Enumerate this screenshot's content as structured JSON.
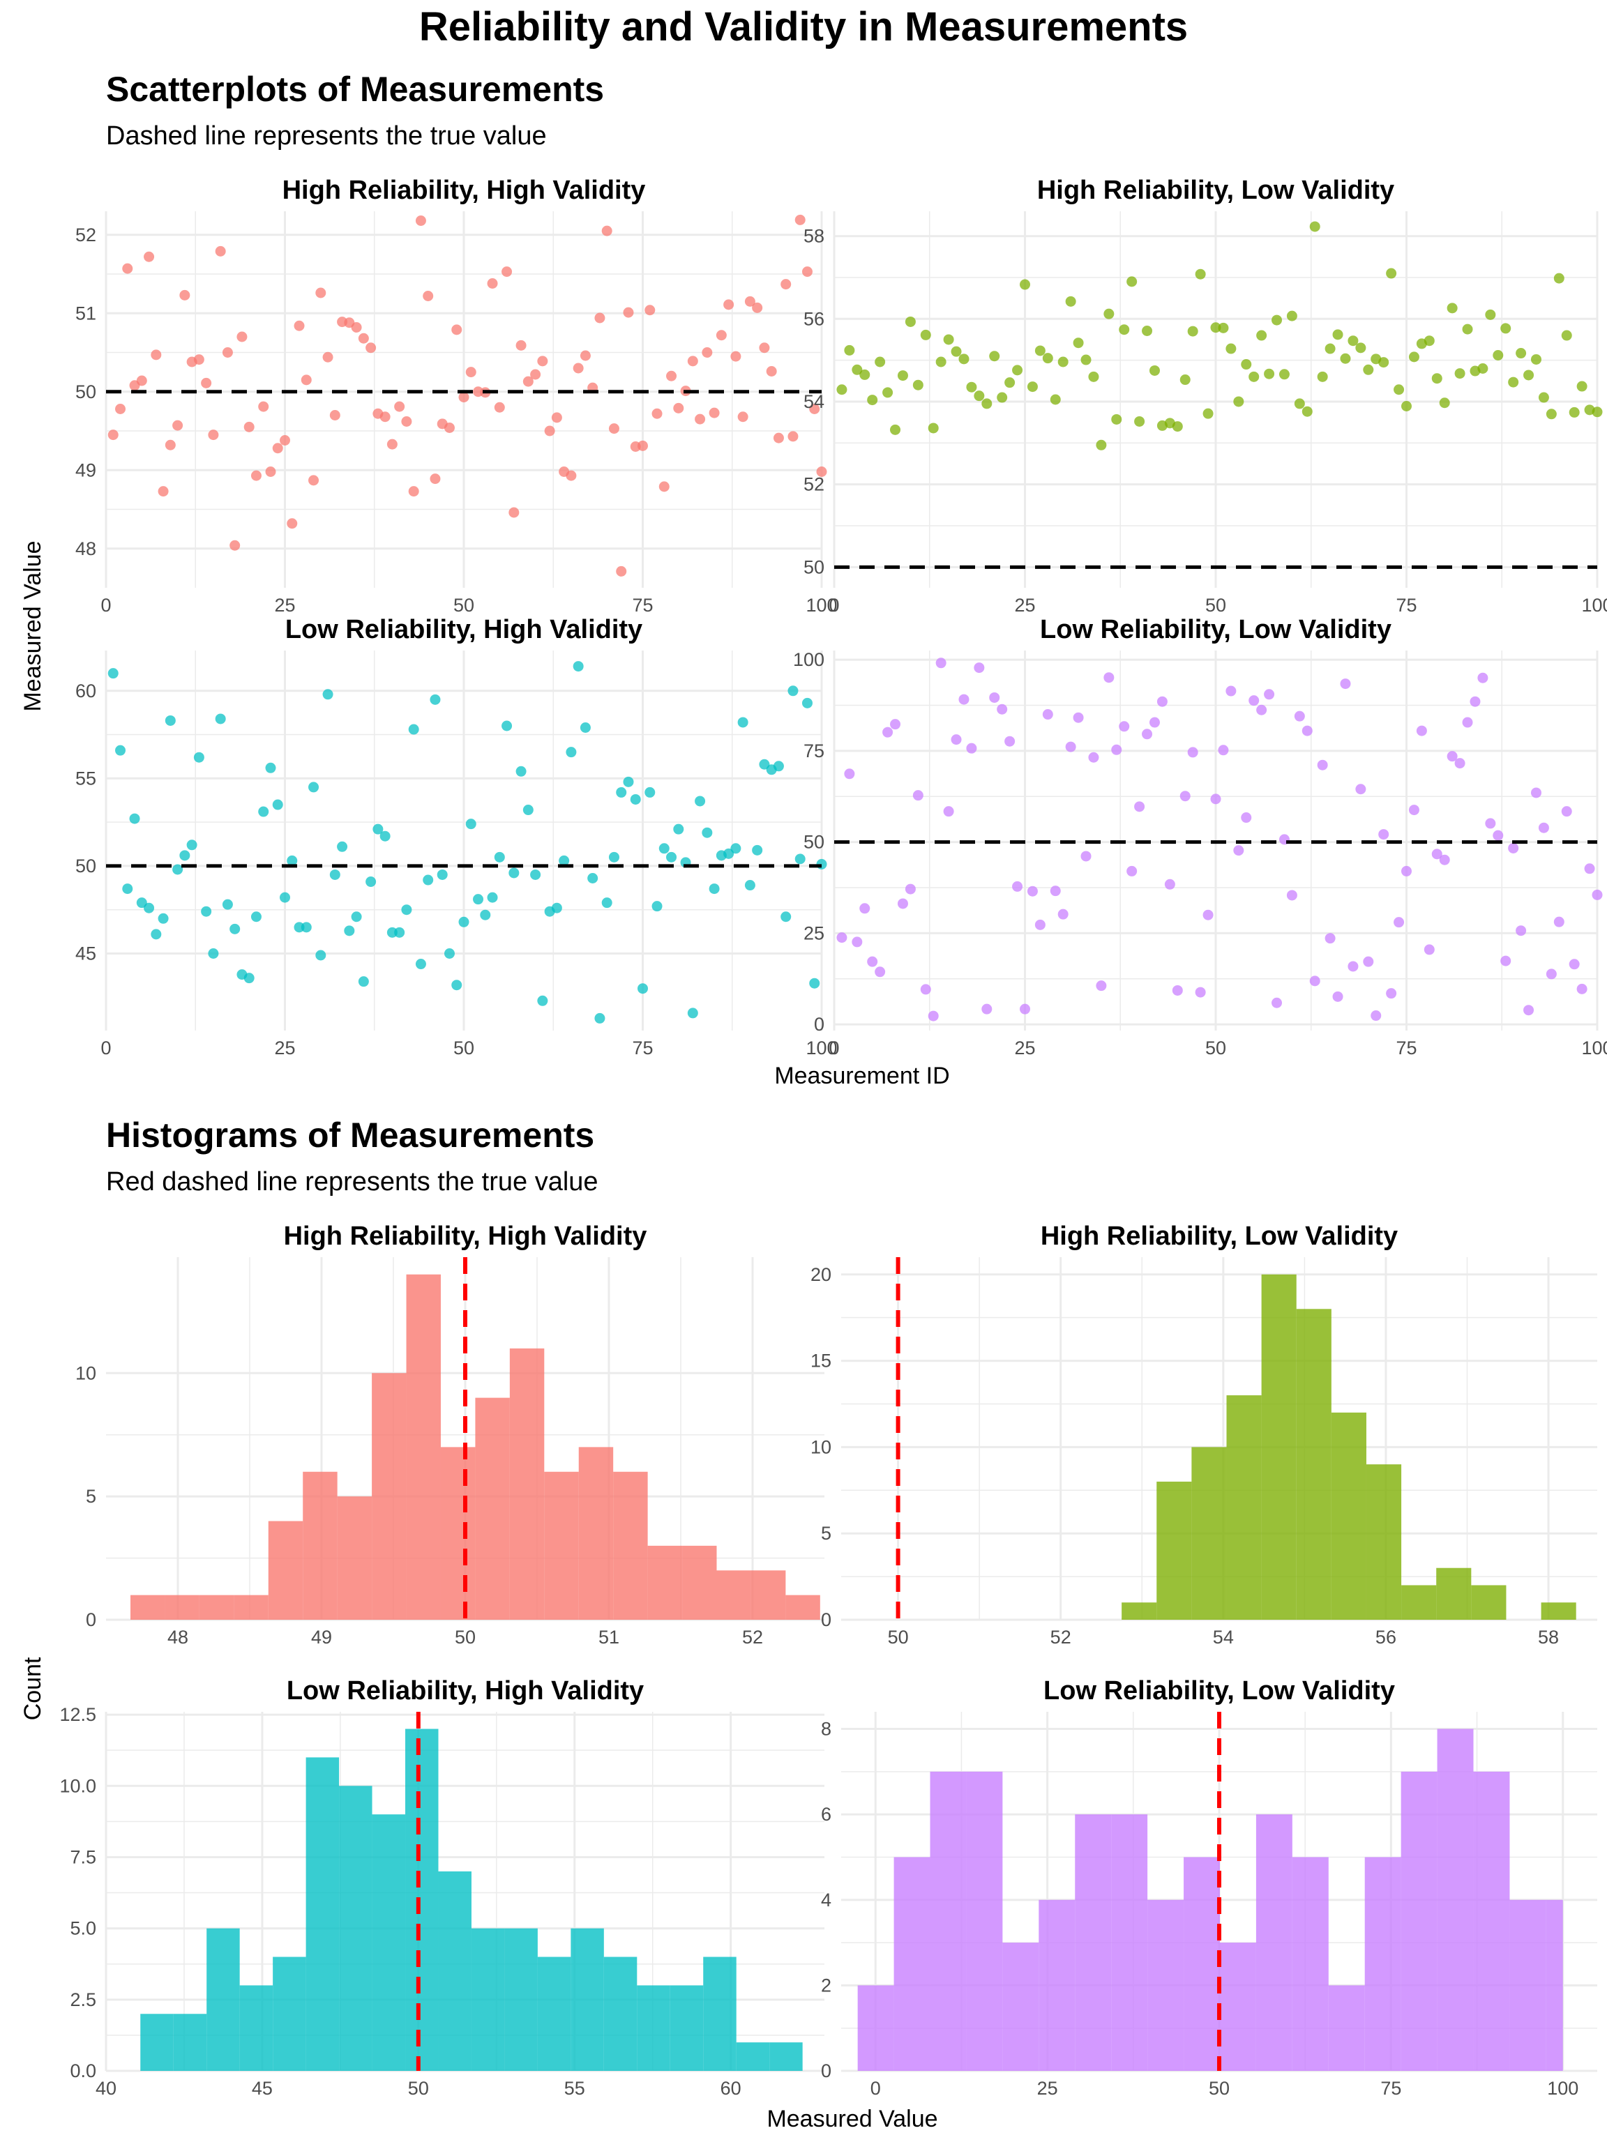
{
  "title": "Reliability and Validity in Measurements",
  "scatter_section": {
    "title": "Scatterplots of Measurements",
    "subtitle": "Dashed line represents the true value",
    "xlabel": "Measurement ID",
    "ylabel": "Measured Value"
  },
  "hist_section": {
    "title": "Histograms of Measurements",
    "subtitle": "Red dashed line represents the true value",
    "xlabel": "Measured Value",
    "ylabel": "Count"
  },
  "colors": {
    "hrhv": "#F8766D",
    "hrlv": "#7CAE00",
    "lrhv": "#00BFC4",
    "lrlv": "#C77CFF",
    "scatter_ref_line": "#000000",
    "hist_ref_line": "#FF0000",
    "grid": "#EBEBEB"
  },
  "chart_data": [
    {
      "type": "scatter",
      "title": "High Reliability, High Validity",
      "color_key": "hrhv",
      "true_value": 50,
      "xlim": [
        0,
        100
      ],
      "ylim": [
        47.5,
        52.3
      ],
      "xticks": [
        0,
        25,
        50,
        75,
        100
      ],
      "yticks": [
        48,
        49,
        50,
        51,
        52
      ],
      "x": [
        1,
        2,
        3,
        4,
        5,
        6,
        7,
        8,
        9,
        10,
        11,
        12,
        13,
        14,
        15,
        16,
        17,
        18,
        19,
        20,
        21,
        22,
        23,
        24,
        25,
        26,
        27,
        28,
        29,
        30,
        31,
        32,
        33,
        34,
        35,
        36,
        37,
        38,
        39,
        40,
        41,
        42,
        43,
        44,
        45,
        46,
        47,
        48,
        49,
        50,
        51,
        52,
        53,
        54,
        55,
        56,
        57,
        58,
        59,
        60,
        61,
        62,
        63,
        64,
        65,
        66,
        67,
        68,
        69,
        70,
        71,
        72,
        73,
        74,
        75,
        76,
        77,
        78,
        79,
        80,
        81,
        82,
        83,
        84,
        85,
        86,
        87,
        88,
        89,
        90,
        91,
        92,
        93,
        94,
        95,
        96,
        97,
        98,
        99,
        100
      ],
      "y": [
        49.45,
        49.78,
        51.57,
        50.08,
        50.14,
        51.72,
        50.47,
        48.73,
        49.32,
        49.57,
        51.23,
        50.38,
        50.41,
        50.11,
        49.45,
        51.79,
        50.5,
        48.04,
        50.7,
        49.55,
        48.93,
        49.81,
        48.98,
        49.28,
        49.38,
        48.32,
        50.84,
        50.15,
        48.87,
        51.26,
        50.44,
        49.7,
        50.89,
        50.88,
        50.82,
        50.68,
        50.56,
        49.72,
        49.68,
        49.33,
        49.81,
        49.62,
        48.73,
        52.18,
        51.22,
        48.89,
        49.59,
        49.54,
        50.79,
        49.93,
        50.25,
        50,
        49.99,
        51.38,
        49.8,
        51.53,
        48.46,
        50.59,
        50.13,
        50.22,
        50.39,
        49.5,
        49.67,
        48.98,
        48.93,
        50.3,
        50.46,
        50.05,
        50.94,
        52.05,
        49.53,
        47.71,
        51.01,
        49.3,
        49.31,
        51.04,
        49.72,
        48.79,
        50.2,
        49.79,
        50.01,
        50.39,
        49.65,
        50.5,
        49.73,
        50.72,
        51.11,
        50.45,
        49.68,
        51.15,
        51.07,
        50.56,
        50.26,
        49.41,
        51.37,
        49.43,
        52.19,
        51.53,
        49.78,
        48.98
      ]
    },
    {
      "type": "scatter",
      "title": "High Reliability, Low Validity",
      "color_key": "hrlv",
      "true_value": 50,
      "xlim": [
        0,
        100
      ],
      "ylim": [
        49.5,
        58.6
      ],
      "xticks": [
        0,
        25,
        50,
        75,
        100
      ],
      "yticks": [
        50,
        52,
        54,
        56,
        58
      ],
      "x": [
        1,
        2,
        3,
        4,
        5,
        6,
        7,
        8,
        9,
        10,
        11,
        12,
        13,
        14,
        15,
        16,
        17,
        18,
        19,
        20,
        21,
        22,
        23,
        24,
        25,
        26,
        27,
        28,
        29,
        30,
        31,
        32,
        33,
        34,
        35,
        36,
        37,
        38,
        39,
        40,
        41,
        42,
        43,
        44,
        45,
        46,
        47,
        48,
        49,
        50,
        51,
        52,
        53,
        54,
        55,
        56,
        57,
        58,
        59,
        60,
        61,
        62,
        63,
        64,
        65,
        66,
        67,
        68,
        69,
        70,
        71,
        72,
        73,
        74,
        75,
        76,
        77,
        78,
        79,
        80,
        81,
        82,
        83,
        84,
        85,
        86,
        87,
        88,
        89,
        90,
        91,
        92,
        93,
        94,
        95,
        96,
        97,
        98,
        99,
        100
      ],
      "y": [
        54.29,
        55.24,
        54.77,
        54.65,
        54.04,
        54.96,
        54.22,
        53.32,
        54.63,
        55.93,
        54.4,
        55.61,
        53.36,
        54.96,
        55.5,
        55.21,
        55.03,
        54.35,
        54.14,
        53.95,
        55.1,
        54.1,
        54.46,
        54.76,
        56.83,
        54.36,
        55.23,
        55.05,
        54.05,
        54.96,
        56.42,
        55.42,
        55.01,
        54.6,
        52.95,
        56.12,
        53.57,
        55.74,
        56.9,
        53.52,
        55.71,
        54.75,
        53.42,
        53.48,
        53.4,
        54.53,
        55.7,
        57.08,
        53.71,
        55.79,
        55.78,
        55.28,
        54.0,
        54.9,
        54.6,
        55.6,
        54.67,
        55.97,
        54.66,
        56.07,
        53.95,
        53.76,
        58.23,
        54.6,
        55.28,
        55.62,
        55.04,
        55.47,
        55.3,
        54.77,
        55.03,
        54.95,
        57.1,
        54.29,
        53.89,
        55.08,
        55.4,
        55.47,
        54.56,
        53.97,
        56.26,
        54.68,
        55.75,
        54.74,
        54.8,
        56.1,
        55.12,
        55.77,
        54.47,
        55.17,
        54.64,
        55.02,
        54.1,
        53.7,
        56.98,
        55.6,
        53.74,
        54.37,
        53.8,
        53.75
      ]
    },
    {
      "type": "scatter",
      "title": "Low Reliability, High Validity",
      "color_key": "lrhv",
      "true_value": 50,
      "xlim": [
        0,
        100
      ],
      "ylim": [
        40.6,
        62.3
      ],
      "xticks": [
        0,
        25,
        50,
        75,
        100
      ],
      "yticks": [
        45,
        50,
        55,
        60
      ],
      "x": [
        1,
        2,
        3,
        4,
        5,
        6,
        7,
        8,
        9,
        10,
        11,
        12,
        13,
        14,
        15,
        16,
        17,
        18,
        19,
        20,
        21,
        22,
        23,
        24,
        25,
        26,
        27,
        28,
        29,
        30,
        31,
        32,
        33,
        34,
        35,
        36,
        37,
        38,
        39,
        40,
        41,
        42,
        43,
        44,
        45,
        46,
        47,
        48,
        49,
        50,
        51,
        52,
        53,
        54,
        55,
        56,
        57,
        58,
        59,
        60,
        61,
        62,
        63,
        64,
        65,
        66,
        67,
        68,
        69,
        70,
        71,
        72,
        73,
        74,
        75,
        76,
        77,
        78,
        79,
        80,
        81,
        82,
        83,
        84,
        85,
        86,
        87,
        88,
        89,
        90,
        91,
        92,
        93,
        94,
        95,
        96,
        97,
        98,
        99,
        100
      ],
      "y": [
        61,
        56.6,
        48.7,
        52.7,
        47.9,
        47.6,
        46.1,
        47,
        58.3,
        49.8,
        50.6,
        51.2,
        56.2,
        47.4,
        45,
        58.4,
        47.8,
        46.4,
        43.8,
        43.6,
        47.1,
        53.1,
        55.6,
        53.5,
        48.2,
        50.3,
        46.5,
        46.5,
        54.5,
        44.9,
        59.8,
        49.5,
        51.1,
        46.3,
        47.1,
        43.4,
        49.1,
        52.1,
        51.7,
        46.2,
        46.2,
        47.5,
        57.8,
        44.4,
        49.2,
        59.5,
        49.5,
        45,
        43.2,
        46.8,
        52.4,
        48.1,
        47.2,
        48.2,
        50.5,
        58,
        49.6,
        55.4,
        53.2,
        49.5,
        42.3,
        47.4,
        47.6,
        50.3,
        56.5,
        61.4,
        57.9,
        49.3,
        41.3,
        47.9,
        50.5,
        54.2,
        54.8,
        53.8,
        43,
        54.2,
        47.7,
        51,
        50.5,
        52.1,
        50.2,
        41.6,
        53.7,
        51.9,
        48.7,
        50.6,
        50.7,
        51,
        58.2,
        48.9,
        50.9,
        55.8,
        55.5,
        55.7,
        47.1,
        60,
        50.4,
        59.3,
        43.3,
        50.1
      ]
    },
    {
      "type": "scatter",
      "title": "Low Reliability, Low Validity",
      "color_key": "lrlv",
      "true_value": 50,
      "xlim": [
        0,
        100
      ],
      "ylim": [
        -1.7,
        102.5
      ],
      "xticks": [
        0,
        25,
        50,
        75,
        100
      ],
      "yticks": [
        0,
        25,
        50,
        75,
        100
      ],
      "x": [
        1,
        2,
        3,
        4,
        5,
        6,
        7,
        8,
        9,
        10,
        11,
        12,
        13,
        14,
        15,
        16,
        17,
        18,
        19,
        20,
        21,
        22,
        23,
        24,
        25,
        26,
        27,
        28,
        29,
        30,
        31,
        32,
        33,
        34,
        35,
        36,
        37,
        38,
        39,
        40,
        41,
        42,
        43,
        44,
        45,
        46,
        47,
        48,
        49,
        50,
        51,
        52,
        53,
        54,
        55,
        56,
        57,
        58,
        59,
        60,
        61,
        62,
        63,
        64,
        65,
        66,
        67,
        68,
        69,
        70,
        71,
        72,
        73,
        74,
        75,
        76,
        77,
        78,
        79,
        80,
        81,
        82,
        83,
        84,
        85,
        86,
        87,
        88,
        89,
        90,
        91,
        92,
        93,
        94,
        95,
        96,
        97,
        98,
        99,
        100
      ],
      "y": [
        23.8,
        68.7,
        22.6,
        31.8,
        17.2,
        14.4,
        80.1,
        82.3,
        33.1,
        37.1,
        62.8,
        9.6,
        2.3,
        99.1,
        58.4,
        78.1,
        89.1,
        75.7,
        97.8,
        4.2,
        89.6,
        86.4,
        77.6,
        37.8,
        4.2,
        36.5,
        27.3,
        85,
        36.6,
        30.2,
        76.1,
        84.1,
        46.1,
        73.2,
        10.6,
        95.1,
        75.3,
        81.7,
        42,
        59.7,
        79.6,
        82.8,
        88.5,
        38.4,
        9.3,
        62.6,
        74.6,
        8.8,
        30,
        61.8,
        75.2,
        91.4,
        47.7,
        56.7,
        88.8,
        86.2,
        90.5,
        5.9,
        50.7,
        35.4,
        84.5,
        80.5,
        11.9,
        71.1,
        23.6,
        7.6,
        93.4,
        15.9,
        64.5,
        17.2,
        2.4,
        52.1,
        8.5,
        28,
        42,
        58.8,
        80.5,
        20.5,
        46.7,
        45.1,
        73.5,
        71.6,
        82.8,
        88.5,
        95,
        55.1,
        51.8,
        17.4,
        48.3,
        25.7,
        3.9,
        63.5,
        53.9,
        13.8,
        28.1,
        58.4,
        16.5,
        9.7,
        42.7,
        35.5
      ]
    },
    {
      "type": "histogram",
      "title": "High Reliability, High Validity",
      "color_key": "hrhv",
      "true_value": 50,
      "xlim": [
        47.5,
        52.5
      ],
      "ylim": [
        0,
        14.7
      ],
      "xticks": [
        48,
        49,
        50,
        51,
        52
      ],
      "yticks": [
        0,
        5,
        10
      ],
      "bin_edges": [
        47.67,
        47.91,
        48.15,
        48.39,
        48.63,
        48.87,
        49.11,
        49.35,
        49.59,
        49.83,
        50.07,
        50.31,
        50.55,
        50.79,
        51.03,
        51.27,
        51.51,
        51.75,
        51.99,
        52.23,
        52.47
      ],
      "counts": [
        1,
        1,
        1,
        1,
        4,
        6,
        5,
        10,
        14,
        7,
        9,
        11,
        6,
        7,
        6,
        3,
        3,
        2,
        2,
        1
      ]
    },
    {
      "type": "histogram",
      "title": "High Reliability, Low Validity",
      "color_key": "hrlv",
      "true_value": 50,
      "xlim": [
        49.3,
        58.6
      ],
      "ylim": [
        0,
        21
      ],
      "xticks": [
        50,
        52,
        54,
        56,
        58
      ],
      "yticks": [
        0,
        5,
        10,
        15,
        20
      ],
      "bin_edges": [
        52.75,
        53.18,
        53.61,
        54.04,
        54.47,
        54.9,
        55.33,
        55.76,
        56.19,
        56.62,
        57.05,
        57.48,
        57.91,
        58.34
      ],
      "counts": [
        1,
        8,
        10,
        13,
        20,
        18,
        12,
        9,
        2,
        3,
        2,
        0,
        1
      ]
    },
    {
      "type": "histogram",
      "title": "Low Reliability, High Validity",
      "color_key": "lrhv",
      "true_value": 50,
      "xlim": [
        40,
        63
      ],
      "ylim": [
        0,
        12.6
      ],
      "xticks": [
        40,
        45,
        50,
        55,
        60
      ],
      "yticks": [
        0.0,
        2.5,
        5.0,
        7.5,
        10.0,
        12.5
      ],
      "bin_edges": [
        41.1,
        42.16,
        43.22,
        44.28,
        45.34,
        46.4,
        47.46,
        48.52,
        49.58,
        50.64,
        51.7,
        52.76,
        53.82,
        54.88,
        55.94,
        57,
        58.06,
        59.12,
        60.18,
        61.24,
        62.3
      ],
      "counts": [
        2,
        2,
        5,
        3,
        4,
        11,
        10,
        9,
        12,
        7,
        5,
        5,
        4,
        5,
        4,
        3,
        3,
        4,
        1,
        1
      ]
    },
    {
      "type": "histogram",
      "title": "Low Reliability, Low Validity",
      "color_key": "lrlv",
      "true_value": 50,
      "xlim": [
        -5,
        105
      ],
      "ylim": [
        0,
        8.4
      ],
      "xticks": [
        0,
        25,
        50,
        75,
        100
      ],
      "yticks": [
        0,
        2,
        4,
        6,
        8
      ],
      "bin_edges": [
        -2.6,
        2.67,
        7.94,
        13.21,
        18.48,
        23.75,
        29.02,
        34.29,
        39.56,
        44.83,
        50.1,
        55.37,
        60.64,
        65.91,
        71.18,
        76.45,
        81.72,
        86.99,
        92.26,
        97.53,
        100
      ],
      "counts": [
        2,
        5,
        7,
        7,
        3,
        4,
        6,
        6,
        4,
        5,
        3,
        6,
        5,
        2,
        5,
        7,
        8,
        7,
        4,
        4
      ]
    }
  ]
}
